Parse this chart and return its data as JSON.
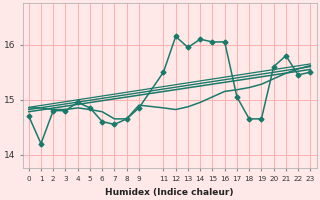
{
  "title": "",
  "xlabel": "Humidex (Indice chaleur)",
  "ylabel": "",
  "bg_color": "#ffe8e8",
  "grid_color": "#ffb0b0",
  "line_color": "#1a7a6a",
  "xlim": [
    -0.5,
    23.5
  ],
  "ylim": [
    13.75,
    16.75
  ],
  "yticks": [
    14,
    15,
    16
  ],
  "xtick_labels": [
    "0",
    "1",
    "2",
    "3",
    "4",
    "5",
    "6",
    "7",
    "8",
    "9",
    "11",
    "12",
    "13",
    "14",
    "15",
    "16",
    "17",
    "18",
    "19",
    "20",
    "21",
    "22",
    "23"
  ],
  "xtick_positions": [
    0,
    1,
    2,
    3,
    4,
    5,
    6,
    7,
    8,
    9,
    11,
    12,
    13,
    14,
    15,
    16,
    17,
    18,
    19,
    20,
    21,
    22,
    23
  ],
  "series": [
    {
      "x": [
        0,
        1,
        2,
        3,
        4,
        5,
        6,
        7,
        8,
        9,
        11,
        12,
        13,
        14,
        15,
        16,
        17,
        18,
        19,
        20,
        21,
        22,
        23
      ],
      "y": [
        14.7,
        14.2,
        14.8,
        14.8,
        14.95,
        14.85,
        14.6,
        14.55,
        14.65,
        14.85,
        15.5,
        16.15,
        15.95,
        16.1,
        16.05,
        16.05,
        15.05,
        14.65,
        14.65,
        15.6,
        15.8,
        15.45,
        15.5
      ],
      "marker": "D",
      "markersize": 2.5,
      "linewidth": 1.1,
      "linestyle": "-"
    },
    {
      "x": [
        0,
        1,
        2,
        3,
        4,
        5,
        6,
        7,
        8,
        9,
        11,
        12,
        13,
        14,
        15,
        16,
        17,
        18,
        19,
        20,
        21,
        22,
        23
      ],
      "y": [
        14.85,
        14.85,
        14.82,
        14.82,
        14.85,
        14.82,
        14.78,
        14.65,
        14.65,
        14.9,
        14.85,
        14.82,
        14.87,
        14.95,
        15.05,
        15.15,
        15.18,
        15.22,
        15.28,
        15.38,
        15.48,
        15.56,
        15.62
      ],
      "marker": "D",
      "markersize": 0,
      "linewidth": 1.1,
      "linestyle": "-"
    },
    {
      "x": [
        0,
        23
      ],
      "y": [
        14.78,
        15.55
      ],
      "marker": "None",
      "markersize": 0,
      "linewidth": 1.1,
      "linestyle": "-"
    },
    {
      "x": [
        0,
        23
      ],
      "y": [
        14.82,
        15.6
      ],
      "marker": "None",
      "markersize": 0,
      "linewidth": 1.0,
      "linestyle": "-"
    },
    {
      "x": [
        0,
        23
      ],
      "y": [
        14.86,
        15.65
      ],
      "marker": "None",
      "markersize": 0,
      "linewidth": 0.9,
      "linestyle": "-"
    }
  ]
}
